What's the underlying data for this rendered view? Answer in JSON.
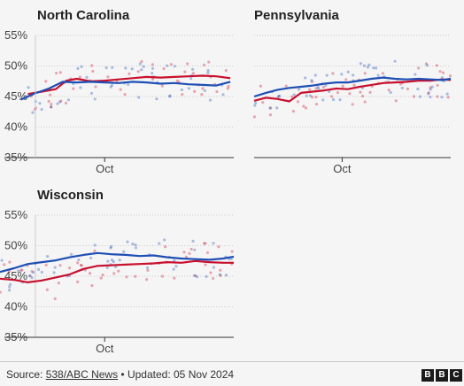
{
  "colors": {
    "republican": "#c8102e",
    "democrat": "#1e4fb5",
    "axis": "#333333",
    "grid": "#cccccc"
  },
  "footer": {
    "source_label": "Source:",
    "source_link": "538/ABC News",
    "separator": "•",
    "updated": "Updated: 05 Nov 2024"
  },
  "logo": {
    "letters": [
      "B",
      "B",
      "C"
    ]
  },
  "chart_data": [
    {
      "type": "line",
      "title": "North Carolina",
      "ylim": [
        35,
        55
      ],
      "yticks": [
        "55%",
        "50%",
        "45%",
        "40%",
        "35%"
      ],
      "yticks_values": [
        55,
        50,
        45,
        40,
        35
      ],
      "x_tick_label": "Oct",
      "x_tick_value": 88,
      "xlim": [
        58,
        125
      ],
      "show_y_labels": true,
      "series": [
        {
          "party": "republican",
          "x": [
            66,
            70,
            74,
            77,
            80,
            84,
            88,
            92,
            96,
            100,
            104,
            108,
            112,
            116,
            120,
            124
          ],
          "values": [
            45.4,
            45.8,
            46.2,
            47.6,
            47.9,
            47.5,
            47.6,
            47.8,
            48.0,
            48.2,
            48.1,
            48.2,
            48.3,
            48.4,
            48.3,
            48.0
          ]
        },
        {
          "party": "democrat",
          "x": [
            64,
            68,
            72,
            76,
            80,
            84,
            88,
            92,
            96,
            100,
            104,
            108,
            112,
            116,
            120,
            124
          ],
          "values": [
            44.5,
            45.5,
            46.3,
            47.4,
            47.3,
            47.4,
            47.3,
            47.2,
            47.4,
            47.3,
            47.1,
            47.2,
            47.0,
            46.9,
            46.8,
            47.4
          ]
        }
      ]
    },
    {
      "type": "line",
      "title": "Pennsylvania",
      "ylim": [
        35,
        55
      ],
      "yticks": [
        "55%",
        "50%",
        "45%",
        "40%",
        "35%"
      ],
      "yticks_values": [
        55,
        50,
        45,
        40,
        35
      ],
      "x_tick_label": "Oct",
      "x_tick_value": 88,
      "xlim": [
        58,
        125
      ],
      "show_y_labels": false,
      "series": [
        {
          "party": "republican",
          "x": [
            58,
            62,
            66,
            70,
            74,
            78,
            82,
            86,
            90,
            94,
            98,
            102,
            106,
            110,
            114,
            118,
            122,
            125
          ],
          "values": [
            44.3,
            44.8,
            44.6,
            44.2,
            45.6,
            45.8,
            46.0,
            46.3,
            46.2,
            46.6,
            46.9,
            47.2,
            47.3,
            47.4,
            47.6,
            47.6,
            47.8,
            47.7
          ]
        },
        {
          "party": "democrat",
          "x": [
            58,
            62,
            66,
            70,
            74,
            78,
            82,
            86,
            90,
            94,
            98,
            102,
            106,
            110,
            114,
            118,
            122,
            125
          ],
          "values": [
            45.0,
            45.6,
            46.1,
            46.4,
            46.6,
            46.8,
            47.1,
            47.3,
            47.3,
            47.6,
            47.9,
            48.1,
            47.9,
            47.8,
            47.9,
            47.8,
            47.7,
            47.9
          ]
        }
      ]
    },
    {
      "type": "line",
      "title": "Wisconsin",
      "ylim": [
        35,
        55
      ],
      "yticks": [
        "55%",
        "50%",
        "45%",
        "40%",
        "35%"
      ],
      "yticks_values": [
        55,
        50,
        45,
        40,
        35
      ],
      "x_tick_label": "Oct",
      "x_tick_value": 88,
      "xlim": [
        58,
        125
      ],
      "show_y_labels": true,
      "series": [
        {
          "party": "republican",
          "x": [
            58,
            62,
            66,
            70,
            74,
            78,
            82,
            86,
            90,
            94,
            98,
            102,
            106,
            110,
            114,
            118,
            122,
            125
          ],
          "values": [
            44.6,
            44.4,
            44.0,
            44.3,
            44.8,
            45.3,
            46.2,
            46.7,
            46.8,
            46.9,
            47.0,
            47.1,
            47.3,
            47.2,
            47.5,
            47.3,
            47.2,
            47.2
          ]
        },
        {
          "party": "democrat",
          "x": [
            58,
            62,
            66,
            70,
            74,
            78,
            82,
            86,
            90,
            94,
            98,
            102,
            106,
            110,
            114,
            118,
            122,
            125
          ],
          "values": [
            45.7,
            46.3,
            47.0,
            47.3,
            47.6,
            48.1,
            48.5,
            48.8,
            48.6,
            48.5,
            48.3,
            48.4,
            48.1,
            47.9,
            47.8,
            47.7,
            47.9,
            48.2
          ]
        }
      ]
    }
  ]
}
